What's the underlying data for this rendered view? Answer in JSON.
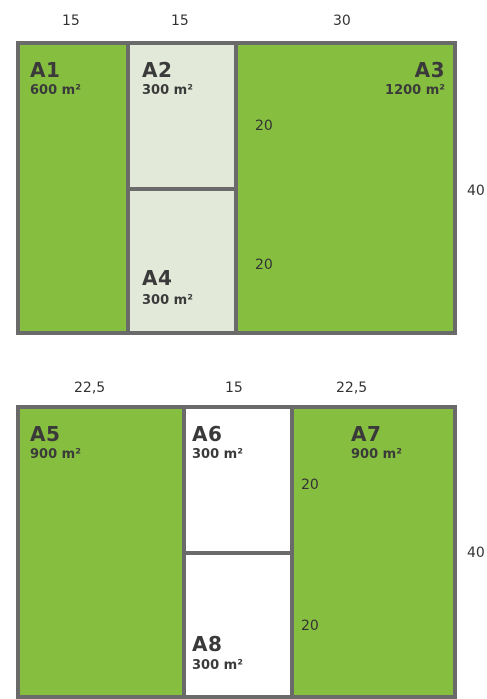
{
  "colors": {
    "green": "#86be40",
    "light_green": "#e2e9d8",
    "white": "#ffffff",
    "border": "#6a6a6a",
    "text": "#3a3a3a"
  },
  "diagram1": {
    "top_dims": [
      "15",
      "15",
      "30"
    ],
    "side_dim": "40",
    "inner_dims": [
      "20",
      "20"
    ],
    "plots": {
      "A1": {
        "name": "A1",
        "area": "600 m²"
      },
      "A2": {
        "name": "A2",
        "area": "300 m²"
      },
      "A3": {
        "name": "A3",
        "area": "1200 m²"
      },
      "A4": {
        "name": "A4",
        "area": "300 m²"
      }
    }
  },
  "diagram2": {
    "top_dims": [
      "22,5",
      "15",
      "22,5"
    ],
    "side_dim": "40",
    "inner_dims": [
      "20",
      "20"
    ],
    "plots": {
      "A5": {
        "name": "A5",
        "area": "900 m²"
      },
      "A6": {
        "name": "A6",
        "area": "300 m²"
      },
      "A7": {
        "name": "A7",
        "area": "900 m²"
      },
      "A8": {
        "name": "A8",
        "area": "300 m²"
      }
    }
  }
}
